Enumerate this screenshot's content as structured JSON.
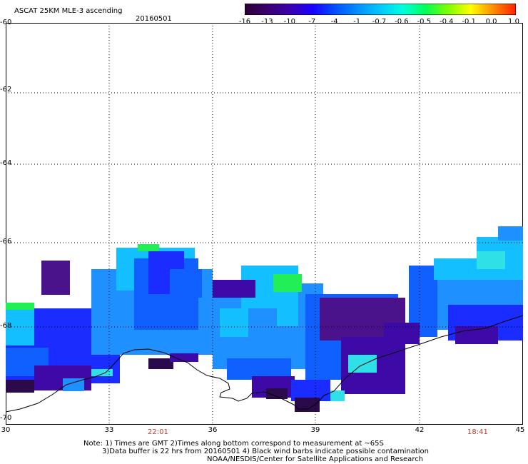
{
  "header": {
    "title": "ASCAT 25KM MLE-3 ascending",
    "date": "20160501"
  },
  "colorbar": {
    "labels": [
      "-16",
      "-13",
      "-10",
      "-7",
      "-4",
      "-1",
      "-0.7",
      "-0.6",
      "-0.5",
      "-0.4",
      "-0.1",
      "0.0",
      "1.0"
    ],
    "colors": [
      "#2b0033",
      "#3a0070",
      "#3b00b0",
      "#1800ff",
      "#0050ff",
      "#0090ff",
      "#00c8ff",
      "#00ffdd",
      "#00ff55",
      "#7fff00",
      "#ffff00",
      "#ff8c00",
      "#ff2000"
    ],
    "marker_color": "#00c8ff"
  },
  "axes": {
    "y_labels": [
      "-60",
      "-62",
      "-64",
      "-66",
      "-68",
      "-70"
    ],
    "x_labels": [
      "30",
      "33",
      "36",
      "39",
      "42",
      "45"
    ]
  },
  "times": {
    "left": "22:01",
    "right": "18:41"
  },
  "notes": {
    "line1": "Note: 1) Times are GMT 2)Times along bottom correspond to measurement at ~65S",
    "line2": "3)Data buffer is 22 hrs from 20160501 4) Black wind barbs indicate possible contamination",
    "line3": "NOAA/NESDIS/Center for Satellite Applications and Research"
  }
}
